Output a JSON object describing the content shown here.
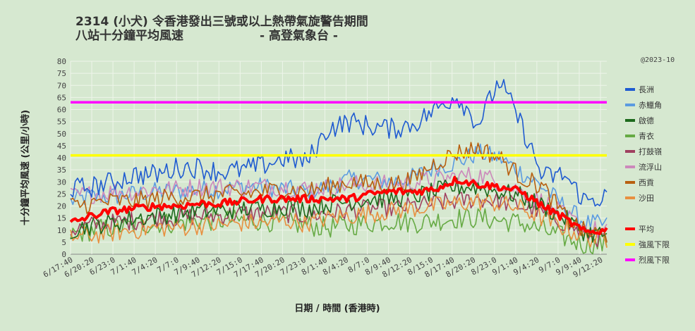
{
  "chart_data": {
    "type": "line",
    "title_line1": "2314 (小犬)  令香港發出三號或以上熱帶氣旋警告期間",
    "title_line2": "八站十分鐘平均風速",
    "title_source": "- 高登氣象台 -",
    "credit": "@2023-10",
    "xlabel": "日期  /  時間  (香港時)",
    "ylabel": "十分鐘平均風速  (公里/小時)",
    "ylim": [
      0,
      80
    ],
    "yticks": [
      0,
      5,
      10,
      15,
      20,
      25,
      30,
      35,
      40,
      45,
      50,
      55,
      60,
      65,
      70,
      75,
      80
    ],
    "x_tick_labels": [
      "6/17:40",
      "6/20:20",
      "6/23:0",
      "7/1:40",
      "7/4:20",
      "7/7:0",
      "7/9:40",
      "7/12:20",
      "7/15:0",
      "7/17:40",
      "7/20:20",
      "7/23:0",
      "8/1:40",
      "8/4:20",
      "8/7:0",
      "8/9:40",
      "8/12:20",
      "8/15:0",
      "8/17:40",
      "8/20:20",
      "8/23:0",
      "9/1:40",
      "9/4:20",
      "9/7:0",
      "9/9:40",
      "9/12:20"
    ],
    "legend_position": "right",
    "thresholds": [
      {
        "name": "強風下限",
        "value": 41,
        "color": "#ffff00"
      },
      {
        "name": "烈風下限",
        "value": 63,
        "color": "#ff00ff"
      }
    ],
    "series": [
      {
        "name": "長洲",
        "color": "#1f5bd1",
        "profile": [
          27,
          28,
          30,
          33,
          33,
          36,
          36,
          34,
          35,
          37,
          40,
          38,
          52,
          55,
          53,
          52,
          54,
          60,
          66,
          54,
          72,
          54,
          32,
          33,
          22,
          24
        ]
      },
      {
        "name": "赤鱲角",
        "color": "#5b9be0",
        "profile": [
          22,
          24,
          24,
          25,
          26,
          26,
          27,
          27,
          28,
          28,
          27,
          26,
          28,
          31,
          31,
          30,
          32,
          36,
          38,
          42,
          40,
          34,
          28,
          20,
          13,
          12
        ]
      },
      {
        "name": "啟德",
        "color": "#1d6a1d",
        "profile": [
          10,
          12,
          13,
          15,
          16,
          17,
          18,
          18,
          19,
          19,
          20,
          19,
          21,
          22,
          23,
          23,
          24,
          26,
          28,
          28,
          26,
          24,
          20,
          15,
          9,
          8
        ]
      },
      {
        "name": "青衣",
        "color": "#66aa44",
        "profile": [
          8,
          10,
          11,
          12,
          13,
          13,
          14,
          14,
          14,
          14,
          13,
          12,
          11,
          12,
          13,
          14,
          13,
          14,
          15,
          15,
          14,
          13,
          10,
          7,
          4,
          4
        ]
      },
      {
        "name": "打鼓嶺",
        "color": "#a04060",
        "profile": [
          10,
          12,
          13,
          14,
          15,
          15,
          16,
          16,
          17,
          17,
          17,
          16,
          17,
          18,
          19,
          19,
          20,
          21,
          22,
          23,
          22,
          20,
          17,
          13,
          8,
          6
        ]
      },
      {
        "name": "流浮山",
        "color": "#cc88bb",
        "profile": [
          24,
          25,
          26,
          26,
          27,
          27,
          28,
          28,
          28,
          28,
          28,
          27,
          28,
          29,
          29,
          29,
          30,
          31,
          32,
          33,
          30,
          26,
          22,
          16,
          11,
          9
        ]
      },
      {
        "name": "西貢",
        "color": "#b86010",
        "profile": [
          20,
          21,
          22,
          22,
          23,
          24,
          24,
          25,
          25,
          26,
          27,
          26,
          28,
          30,
          29,
          29,
          31,
          38,
          42,
          44,
          40,
          32,
          28,
          16,
          9,
          8
        ]
      },
      {
        "name": "沙田",
        "color": "#e89040",
        "profile": [
          7,
          8,
          9,
          10,
          11,
          11,
          12,
          12,
          13,
          13,
          14,
          13,
          15,
          16,
          17,
          18,
          19,
          20,
          21,
          22,
          21,
          19,
          15,
          11,
          7,
          6
        ]
      }
    ],
    "average": {
      "name": "平均",
      "color": "#ff0000",
      "profile": [
        13,
        16,
        18,
        19,
        20,
        20,
        21,
        21,
        22,
        23,
        23,
        23,
        23,
        23,
        25,
        26,
        26,
        27,
        31,
        29,
        28,
        26,
        20,
        15,
        9,
        10
      ]
    }
  }
}
